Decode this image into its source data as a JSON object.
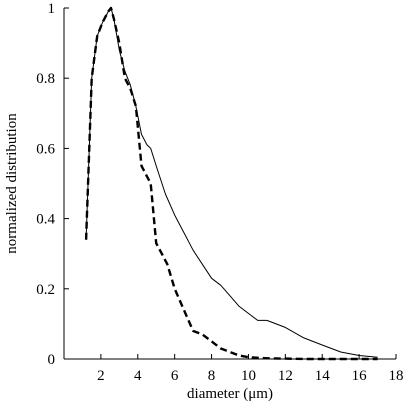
{
  "chart_data": {
    "type": "line",
    "title": "",
    "xlabel": "diameter (μm)",
    "ylabel": "normalized distribution",
    "xlim": [
      0,
      18
    ],
    "ylim": [
      0,
      1
    ],
    "xticks": [
      2,
      4,
      6,
      8,
      10,
      12,
      14,
      16,
      18
    ],
    "yticks": [
      0,
      0.2,
      0.4,
      0.6,
      0.8,
      1
    ],
    "x_tick_labels": [
      "2",
      "4",
      "6",
      "8",
      "10",
      "12",
      "14",
      "16",
      "18"
    ],
    "y_tick_labels": [
      "0",
      "0.2",
      "0.4",
      "0.6",
      "0.8",
      "1"
    ],
    "grid": false,
    "legend": "none",
    "series": [
      {
        "style": "solid",
        "x": [
          1.2,
          1.5,
          1.8,
          2.1,
          2.4,
          2.55,
          2.7,
          3.0,
          3.3,
          3.6,
          3.9,
          4.2,
          4.5,
          4.7,
          5.0,
          5.5,
          6.0,
          6.5,
          7.0,
          7.5,
          8.0,
          8.5,
          9.0,
          9.5,
          10.0,
          10.5,
          11.0,
          11.5,
          12.0,
          13.0,
          14.0,
          15.0,
          16.0,
          17.0
        ],
        "y": [
          0.34,
          0.8,
          0.92,
          0.96,
          0.99,
          1.0,
          0.97,
          0.88,
          0.82,
          0.78,
          0.72,
          0.64,
          0.61,
          0.6,
          0.55,
          0.47,
          0.41,
          0.36,
          0.31,
          0.27,
          0.23,
          0.21,
          0.18,
          0.15,
          0.13,
          0.11,
          0.11,
          0.1,
          0.09,
          0.06,
          0.04,
          0.02,
          0.01,
          0.005
        ]
      },
      {
        "style": "dashed",
        "x": [
          1.2,
          1.5,
          1.8,
          2.1,
          2.4,
          2.55,
          2.7,
          3.0,
          3.3,
          3.6,
          3.9,
          4.2,
          4.5,
          4.7,
          5.0,
          5.3,
          5.6,
          6.0,
          6.5,
          7.0,
          7.5,
          8.0,
          8.5,
          9.0,
          9.5,
          10.0,
          11.0,
          12.0,
          13.0,
          14.0,
          15.0,
          16.0,
          17.0
        ],
        "y": [
          0.34,
          0.8,
          0.92,
          0.96,
          0.99,
          1.0,
          0.97,
          0.9,
          0.8,
          0.77,
          0.72,
          0.55,
          0.52,
          0.5,
          0.33,
          0.3,
          0.27,
          0.2,
          0.14,
          0.08,
          0.07,
          0.05,
          0.03,
          0.02,
          0.01,
          0.005,
          0.002,
          0.001,
          0.0,
          0.0,
          0.0,
          0.0,
          0.0
        ]
      }
    ]
  }
}
